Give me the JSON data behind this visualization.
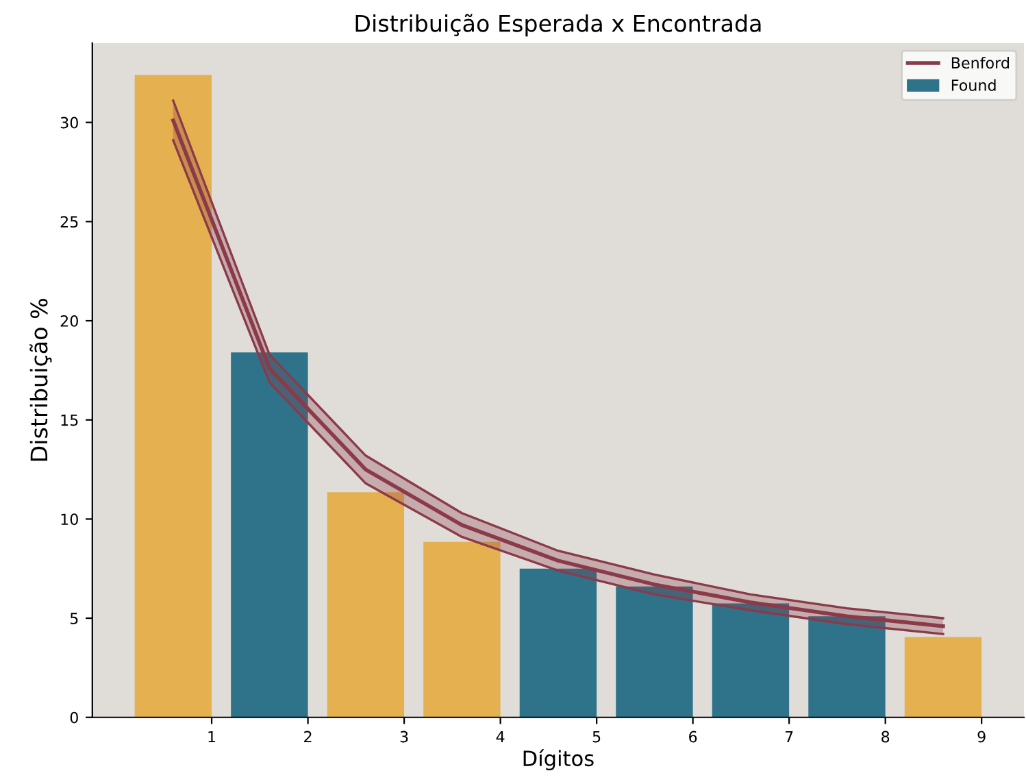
{
  "chart_data": {
    "type": "bar",
    "title": "Distribuição Esperada x Encontrada",
    "xlabel": "Dígitos",
    "ylabel": "Distribuição %",
    "x": [
      0.6,
      1.6,
      2.6,
      3.6,
      4.6,
      5.6,
      6.6,
      7.6,
      8.6
    ],
    "series": [
      {
        "name": "Benford",
        "type": "line",
        "color": "#8b3a4a",
        "values": [
          30.1,
          17.6,
          12.5,
          9.7,
          7.9,
          6.7,
          5.8,
          5.1,
          4.6
        ],
        "upper": [
          31.1,
          18.3,
          13.2,
          10.3,
          8.4,
          7.2,
          6.2,
          5.5,
          5.0
        ],
        "lower": [
          29.1,
          16.9,
          11.8,
          9.1,
          7.4,
          6.2,
          5.4,
          4.7,
          4.2
        ]
      },
      {
        "type": "line",
        "color": "#8b3a4a",
        "values": [
          31.1,
          18.3,
          13.2,
          10.3,
          8.4,
          7.2,
          6.2,
          5.5,
          5.0
        ]
      },
      {
        "type": "line",
        "color": "#8b3a4a",
        "values": [
          29.1,
          16.9,
          11.8,
          9.1,
          7.4,
          6.2,
          5.4,
          4.7,
          4.2
        ]
      },
      {
        "name": "Found",
        "color": "#2e738a",
        "colors": [
          "#e5b050",
          "#2e738a",
          "#e5b050",
          "#e5b050",
          "#2e738a",
          "#2e738a",
          "#2e738a",
          "#2e738a",
          "#e5b050"
        ],
        "values": [
          32.4,
          18.4,
          11.35,
          8.85,
          7.5,
          6.6,
          5.75,
          5.1,
          4.05
        ]
      }
    ],
    "xlim": [
      -0.24,
      9.44
    ],
    "xticks": [
      1,
      2,
      3,
      4,
      5,
      6,
      7,
      8,
      9
    ],
    "ylim": [
      0,
      34
    ],
    "yticks": [
      0,
      5,
      10,
      15,
      20,
      25,
      30
    ],
    "grid": false,
    "legend": "top right"
  }
}
